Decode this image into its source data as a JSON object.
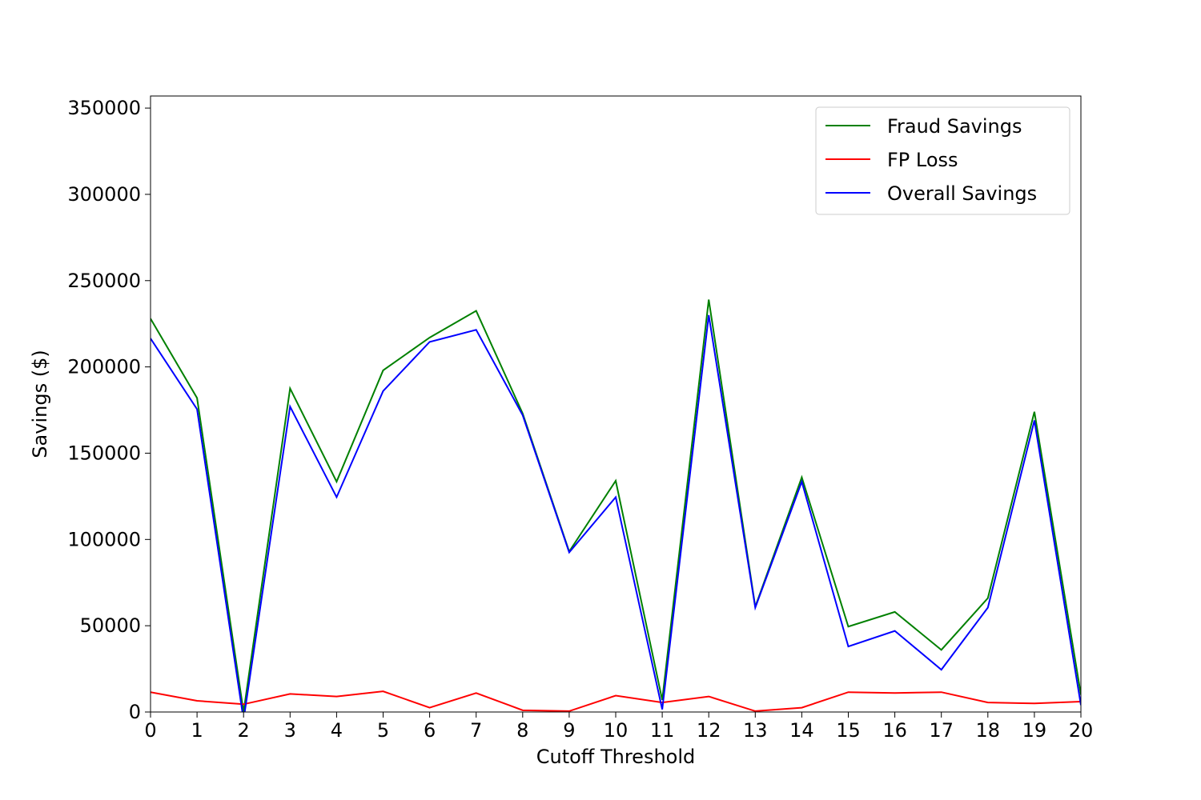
{
  "chart_data": {
    "type": "line",
    "title": "",
    "xlabel": "Cutoff Threshold",
    "ylabel": "Savings ($)",
    "x": [
      0,
      1,
      2,
      3,
      4,
      5,
      6,
      7,
      8,
      9,
      10,
      11,
      12,
      13,
      14,
      15,
      16,
      17,
      18,
      19,
      20
    ],
    "xticks": [
      "0",
      "1",
      "2",
      "3",
      "4",
      "5",
      "6",
      "7",
      "8",
      "9",
      "10",
      "11",
      "12",
      "13",
      "14",
      "15",
      "16",
      "17",
      "18",
      "19",
      "20"
    ],
    "yticks": [
      "0",
      "50000",
      "100000",
      "150000",
      "200000",
      "250000",
      "300000",
      "350000"
    ],
    "xlim": [
      0,
      20
    ],
    "ylim": [
      0,
      350000
    ],
    "grid": false,
    "legend_position": "top-right",
    "series": [
      {
        "name": "Fraud Savings",
        "color": "#008000",
        "values": [
          228000,
          182000,
          0,
          187500,
          133500,
          198000,
          217000,
          232500,
          173000,
          93000,
          134000,
          7000,
          239000,
          61000,
          136000,
          49500,
          58000,
          36000,
          66000,
          174000,
          10000
        ]
      },
      {
        "name": "FP Loss",
        "color": "#ff0000",
        "values": [
          11500,
          6500,
          4500,
          10500,
          9000,
          12000,
          2500,
          11000,
          1000,
          500,
          9500,
          5500,
          9000,
          500,
          2500,
          11500,
          11000,
          11500,
          5500,
          5000,
          6000
        ]
      },
      {
        "name": "Overall Savings",
        "color": "#0000ff",
        "values": [
          216500,
          175500,
          -4500,
          177000,
          124500,
          186000,
          214500,
          221500,
          172000,
          92500,
          124500,
          1500,
          230000,
          60500,
          133500,
          38000,
          47000,
          24500,
          60500,
          169000,
          4000
        ]
      }
    ]
  }
}
